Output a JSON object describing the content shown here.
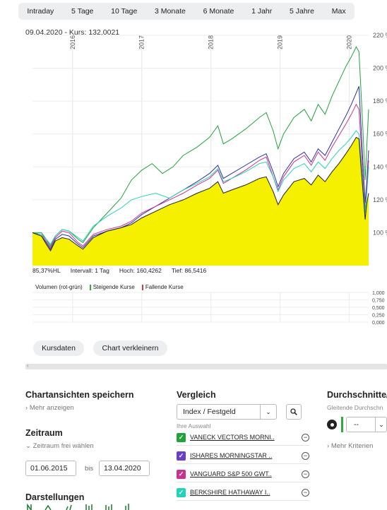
{
  "range_tabs": [
    "Intraday",
    "5 Tage",
    "10 Tage",
    "3 Monate",
    "6 Monate",
    "1 Jahr",
    "5 Jahre",
    "Max"
  ],
  "header": {
    "date": "09.04.2020",
    "separator": "-",
    "kurs_label": "Kurs:",
    "kurs_value": "132,0021"
  },
  "chart_data": {
    "type": "area",
    "x_tick_labels": [
      "2016",
      "2017",
      "2018",
      "2019",
      "2020"
    ],
    "x_tick_years": [
      2016.0,
      2017.0,
      2018.0,
      2019.0,
      2020.0
    ],
    "x_range": [
      2015.42,
      2020.28
    ],
    "y_tick_labels": [
      "100 %",
      "120 %",
      "140 %",
      "160 %",
      "180 %",
      "200 %",
      "220 %"
    ],
    "y_ticks": [
      100,
      120,
      140,
      160,
      180,
      200,
      220
    ],
    "ylim": [
      80,
      220
    ],
    "grid": true,
    "series": [
      {
        "color": "#f5ef00",
        "role": "area",
        "points": [
          [
            2015.42,
            100
          ],
          [
            2015.55,
            98
          ],
          [
            2015.62,
            93
          ],
          [
            2015.68,
            89
          ],
          [
            2015.75,
            95
          ],
          [
            2015.85,
            97
          ],
          [
            2015.95,
            96
          ],
          [
            2016.08,
            92
          ],
          [
            2016.15,
            90
          ],
          [
            2016.3,
            97
          ],
          [
            2016.5,
            101
          ],
          [
            2016.7,
            103
          ],
          [
            2016.85,
            105
          ],
          [
            2017.0,
            109
          ],
          [
            2017.2,
            113
          ],
          [
            2017.4,
            117
          ],
          [
            2017.6,
            120
          ],
          [
            2017.8,
            124
          ],
          [
            2017.98,
            127
          ],
          [
            2018.1,
            131
          ],
          [
            2018.18,
            124
          ],
          [
            2018.3,
            126
          ],
          [
            2018.5,
            129
          ],
          [
            2018.7,
            133
          ],
          [
            2018.8,
            134
          ],
          [
            2018.9,
            125
          ],
          [
            2018.97,
            117
          ],
          [
            2019.05,
            123
          ],
          [
            2019.2,
            131
          ],
          [
            2019.35,
            133
          ],
          [
            2019.45,
            129
          ],
          [
            2019.55,
            135
          ],
          [
            2019.65,
            131
          ],
          [
            2019.75,
            137
          ],
          [
            2019.85,
            142
          ],
          [
            2019.95,
            148
          ],
          [
            2020.03,
            153
          ],
          [
            2020.1,
            158
          ],
          [
            2020.14,
            157
          ],
          [
            2020.17,
            140
          ],
          [
            2020.2,
            124
          ],
          [
            2020.23,
            108
          ],
          [
            2020.25,
            117
          ],
          [
            2020.28,
            124
          ]
        ]
      },
      {
        "color": "#1fa33a",
        "points": [
          [
            2015.42,
            100
          ],
          [
            2015.55,
            100
          ],
          [
            2015.62,
            96
          ],
          [
            2015.68,
            92
          ],
          [
            2015.75,
            98
          ],
          [
            2015.85,
            102
          ],
          [
            2015.95,
            101
          ],
          [
            2016.08,
            96
          ],
          [
            2016.15,
            94
          ],
          [
            2016.3,
            103
          ],
          [
            2016.5,
            112
          ],
          [
            2016.7,
            121
          ],
          [
            2016.85,
            132
          ],
          [
            2017.0,
            138
          ],
          [
            2017.15,
            142
          ],
          [
            2017.3,
            136
          ],
          [
            2017.45,
            140
          ],
          [
            2017.6,
            147
          ],
          [
            2017.8,
            152
          ],
          [
            2017.98,
            158
          ],
          [
            2018.1,
            165
          ],
          [
            2018.18,
            154
          ],
          [
            2018.3,
            157
          ],
          [
            2018.5,
            163
          ],
          [
            2018.7,
            170
          ],
          [
            2018.8,
            173
          ],
          [
            2018.9,
            162
          ],
          [
            2018.97,
            151
          ],
          [
            2019.05,
            160
          ],
          [
            2019.2,
            170
          ],
          [
            2019.35,
            175
          ],
          [
            2019.45,
            168
          ],
          [
            2019.55,
            178
          ],
          [
            2019.65,
            172
          ],
          [
            2019.75,
            183
          ],
          [
            2019.85,
            192
          ],
          [
            2019.95,
            201
          ],
          [
            2020.03,
            207
          ],
          [
            2020.1,
            213
          ],
          [
            2020.14,
            210
          ],
          [
            2020.17,
            186
          ],
          [
            2020.2,
            160
          ],
          [
            2020.23,
            132
          ],
          [
            2020.25,
            150
          ],
          [
            2020.28,
            175
          ]
        ]
      },
      {
        "color": "#2f2fa8",
        "points": [
          [
            2015.42,
            100
          ],
          [
            2015.55,
            98
          ],
          [
            2015.62,
            94
          ],
          [
            2015.68,
            90
          ],
          [
            2015.75,
            96
          ],
          [
            2015.85,
            99
          ],
          [
            2015.95,
            98
          ],
          [
            2016.08,
            93
          ],
          [
            2016.15,
            91
          ],
          [
            2016.3,
            98
          ],
          [
            2016.5,
            101
          ],
          [
            2016.7,
            103
          ],
          [
            2016.85,
            106
          ],
          [
            2017.0,
            111
          ],
          [
            2017.2,
            116
          ],
          [
            2017.4,
            121
          ],
          [
            2017.6,
            126
          ],
          [
            2017.8,
            131
          ],
          [
            2017.98,
            136
          ],
          [
            2018.1,
            141
          ],
          [
            2018.18,
            133
          ],
          [
            2018.3,
            136
          ],
          [
            2018.5,
            141
          ],
          [
            2018.7,
            146
          ],
          [
            2018.8,
            148
          ],
          [
            2018.9,
            137
          ],
          [
            2018.97,
            128
          ],
          [
            2019.05,
            136
          ],
          [
            2019.2,
            145
          ],
          [
            2019.35,
            149
          ],
          [
            2019.45,
            143
          ],
          [
            2019.55,
            151
          ],
          [
            2019.65,
            147
          ],
          [
            2019.75,
            155
          ],
          [
            2019.85,
            163
          ],
          [
            2019.95,
            171
          ],
          [
            2020.03,
            178
          ],
          [
            2020.1,
            185
          ],
          [
            2020.14,
            189
          ],
          [
            2020.17,
            165
          ],
          [
            2020.2,
            140
          ],
          [
            2020.23,
            118
          ],
          [
            2020.25,
            130
          ],
          [
            2020.28,
            150
          ]
        ]
      },
      {
        "color": "#c8338f",
        "points": [
          [
            2015.42,
            100
          ],
          [
            2015.55,
            99
          ],
          [
            2015.62,
            95
          ],
          [
            2015.68,
            91
          ],
          [
            2015.75,
            97
          ],
          [
            2015.85,
            101
          ],
          [
            2015.95,
            100
          ],
          [
            2016.08,
            94
          ],
          [
            2016.15,
            92
          ],
          [
            2016.3,
            99
          ],
          [
            2016.5,
            102
          ],
          [
            2016.7,
            104
          ],
          [
            2016.85,
            107
          ],
          [
            2017.0,
            112
          ],
          [
            2017.2,
            116
          ],
          [
            2017.4,
            120
          ],
          [
            2017.6,
            124
          ],
          [
            2017.8,
            129
          ],
          [
            2017.98,
            133
          ],
          [
            2018.1,
            138
          ],
          [
            2018.18,
            130
          ],
          [
            2018.3,
            133
          ],
          [
            2018.5,
            138
          ],
          [
            2018.7,
            144
          ],
          [
            2018.8,
            146
          ],
          [
            2018.9,
            134
          ],
          [
            2018.97,
            126
          ],
          [
            2019.05,
            134
          ],
          [
            2019.2,
            143
          ],
          [
            2019.35,
            147
          ],
          [
            2019.45,
            141
          ],
          [
            2019.55,
            149
          ],
          [
            2019.65,
            144
          ],
          [
            2019.75,
            152
          ],
          [
            2019.85,
            159
          ],
          [
            2019.95,
            166
          ],
          [
            2020.03,
            172
          ],
          [
            2020.1,
            178
          ],
          [
            2020.14,
            175
          ],
          [
            2020.17,
            155
          ],
          [
            2020.2,
            133
          ],
          [
            2020.23,
            113
          ],
          [
            2020.25,
            126
          ],
          [
            2020.28,
            144
          ]
        ]
      },
      {
        "color": "#22d3b5",
        "points": [
          [
            2015.42,
            100
          ],
          [
            2015.55,
            99
          ],
          [
            2015.62,
            96
          ],
          [
            2015.68,
            93
          ],
          [
            2015.75,
            98
          ],
          [
            2015.85,
            102
          ],
          [
            2015.95,
            101
          ],
          [
            2016.08,
            97
          ],
          [
            2016.15,
            95
          ],
          [
            2016.3,
            104
          ],
          [
            2016.5,
            110
          ],
          [
            2016.7,
            115
          ],
          [
            2016.85,
            120
          ],
          [
            2017.0,
            122
          ],
          [
            2017.2,
            124
          ],
          [
            2017.4,
            121
          ],
          [
            2017.6,
            126
          ],
          [
            2017.8,
            130
          ],
          [
            2017.98,
            134
          ],
          [
            2018.1,
            139
          ],
          [
            2018.18,
            131
          ],
          [
            2018.3,
            133
          ],
          [
            2018.5,
            137
          ],
          [
            2018.7,
            142
          ],
          [
            2018.8,
            143
          ],
          [
            2018.9,
            134
          ],
          [
            2018.97,
            125
          ],
          [
            2019.05,
            132
          ],
          [
            2019.2,
            139
          ],
          [
            2019.35,
            142
          ],
          [
            2019.45,
            137
          ],
          [
            2019.55,
            143
          ],
          [
            2019.65,
            139
          ],
          [
            2019.75,
            145
          ],
          [
            2019.85,
            150
          ],
          [
            2019.95,
            154
          ],
          [
            2020.03,
            158
          ],
          [
            2020.1,
            162
          ],
          [
            2020.14,
            160
          ],
          [
            2020.17,
            145
          ],
          [
            2020.2,
            128
          ],
          [
            2020.23,
            112
          ],
          [
            2020.25,
            122
          ],
          [
            2020.28,
            140
          ]
        ]
      },
      {
        "color": "#222222",
        "points": [
          [
            2015.42,
            100
          ],
          [
            2015.55,
            98
          ],
          [
            2015.62,
            93
          ],
          [
            2015.68,
            89
          ],
          [
            2015.75,
            95
          ],
          [
            2015.85,
            97
          ],
          [
            2015.95,
            96
          ],
          [
            2016.08,
            92
          ],
          [
            2016.15,
            90
          ],
          [
            2016.3,
            97
          ],
          [
            2016.5,
            101
          ],
          [
            2016.7,
            103
          ],
          [
            2016.85,
            105
          ],
          [
            2017.0,
            109
          ],
          [
            2017.2,
            113
          ],
          [
            2017.4,
            117
          ],
          [
            2017.6,
            120
          ],
          [
            2017.8,
            124
          ],
          [
            2017.98,
            127
          ],
          [
            2018.1,
            131
          ],
          [
            2018.18,
            124
          ],
          [
            2018.3,
            126
          ],
          [
            2018.5,
            129
          ],
          [
            2018.7,
            133
          ],
          [
            2018.8,
            134
          ],
          [
            2018.9,
            125
          ],
          [
            2018.97,
            117
          ],
          [
            2019.05,
            123
          ],
          [
            2019.2,
            131
          ],
          [
            2019.35,
            133
          ],
          [
            2019.45,
            129
          ],
          [
            2019.55,
            135
          ],
          [
            2019.65,
            131
          ],
          [
            2019.75,
            137
          ],
          [
            2019.85,
            142
          ],
          [
            2019.95,
            148
          ],
          [
            2020.03,
            153
          ],
          [
            2020.1,
            158
          ],
          [
            2020.14,
            157
          ],
          [
            2020.17,
            140
          ],
          [
            2020.2,
            124
          ],
          [
            2020.23,
            108
          ],
          [
            2020.25,
            117
          ],
          [
            2020.28,
            124
          ]
        ]
      }
    ],
    "volume_axis_labels": [
      "1,000",
      "0,750",
      "0,500",
      "0,250",
      "0,000"
    ]
  },
  "stats": {
    "perf": "85,37%HL",
    "interval": "Intervall: 1 Tag",
    "hoch": "Hoch: 160,4262",
    "tief": "Tief: 86,5416"
  },
  "volume_legend": {
    "title": "Volumen (rot-grün)",
    "rising": "Steigende Kurse",
    "falling": "Fallende Kurse",
    "rising_color": "#2eaa3f",
    "falling_color": "#d6344a"
  },
  "buttons": {
    "kursdaten": "Kursdaten",
    "chart_verkleinern": "Chart verkleinern"
  },
  "save_views": {
    "title": "Chartansichten speichern",
    "more": "Mehr anzeigen"
  },
  "zeitraum": {
    "title": "Zeitraum",
    "free_select": "Zeitraum frei wählen",
    "from": "01.06.2015",
    "bis": "bis",
    "to": "13.04.2020"
  },
  "darstellungen": {
    "title": "Darstellungen"
  },
  "vergleich": {
    "title": "Vergleich",
    "select_value": "Index / Festgeld",
    "selection_label": "Ihre Auswahl",
    "items": [
      {
        "name": "VANECK VECTORS MORNI..",
        "color": "#1fa33a"
      },
      {
        "name": "ISHARES MORNINGSTAR ..",
        "color": "#6a3fc8"
      },
      {
        "name": "VANGUARD S&P 500 GWT..",
        "color": "#c8338f"
      },
      {
        "name": "BERKSHIRE HATHAWAY I..",
        "color": "#22d3b5"
      }
    ]
  },
  "durchschnitte": {
    "title": "Durchschnitte/I",
    "subtitle": "Gleitende Durchschn",
    "select_value": "--",
    "more": "Mehr Kriterien"
  }
}
